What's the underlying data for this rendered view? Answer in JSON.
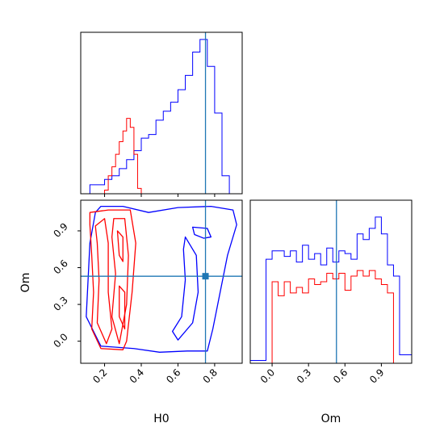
{
  "colors": {
    "series_a": "#0000ff",
    "series_b": "#ff0000",
    "truth": "#1f77b4"
  },
  "chart_data": {
    "type": "corner",
    "axes": [
      {
        "panel": "histogram",
        "parameter": "H0",
        "xlim": [
          0.07,
          0.95
        ],
        "x_tick_labels_shown": false,
        "truth": 0.75,
        "series": [
          {
            "color": "blue",
            "bin_edges": [
              0.08,
              0.12,
              0.16,
              0.2,
              0.24,
              0.28,
              0.32,
              0.36,
              0.4,
              0.44,
              0.48,
              0.52,
              0.56,
              0.6,
              0.64,
              0.68,
              0.72,
              0.76,
              0.8,
              0.84,
              0.88,
              0.92
            ],
            "heights": [
              0.0,
              0.05,
              0.05,
              0.08,
              0.1,
              0.14,
              0.19,
              0.24,
              0.31,
              0.33,
              0.41,
              0.46,
              0.51,
              0.58,
              0.66,
              0.79,
              0.86,
              0.71,
              0.45,
              0.1,
              0.0
            ]
          },
          {
            "color": "red",
            "bin_edges": [
              0.2,
              0.22,
              0.24,
              0.26,
              0.28,
              0.3,
              0.32,
              0.34,
              0.36,
              0.38,
              0.4
            ],
            "heights": [
              0.02,
              0.1,
              0.15,
              0.22,
              0.29,
              0.35,
              0.42,
              0.37,
              0.22,
              0.03
            ]
          }
        ]
      },
      {
        "panel": "contour",
        "xlabel": "H0",
        "ylabel": "Om",
        "xlim": [
          0.07,
          0.95
        ],
        "ylim": [
          -0.18,
          1.15
        ],
        "xticks": [
          "0.2",
          "0.4",
          "0.6",
          "0.8"
        ],
        "yticks": [
          "0.0",
          "0.3",
          "0.6",
          "0.9"
        ],
        "truth": [
          0.75,
          0.53
        ],
        "series": [
          {
            "color": "blue",
            "contours": [
              [
                [
                  0.18,
                  1.1
                ],
                [
                  0.3,
                  1.1
                ],
                [
                  0.44,
                  1.05
                ],
                [
                  0.6,
                  1.09
                ],
                [
                  0.78,
                  1.1
                ],
                [
                  0.9,
                  1.07
                ],
                [
                  0.92,
                  0.95
                ],
                [
                  0.87,
                  0.7
                ],
                [
                  0.83,
                  0.4
                ],
                [
                  0.79,
                  0.1
                ],
                [
                  0.76,
                  -0.08
                ],
                [
                  0.65,
                  -0.08
                ],
                [
                  0.5,
                  -0.09
                ],
                [
                  0.36,
                  -0.06
                ],
                [
                  0.18,
                  -0.04
                ],
                [
                  0.1,
                  0.2
                ],
                [
                  0.11,
                  0.5
                ],
                [
                  0.12,
                  0.8
                ],
                [
                  0.15,
                  1.05
                ]
              ],
              [
                [
                  0.64,
                  0.85
                ],
                [
                  0.7,
                  0.7
                ],
                [
                  0.71,
                  0.4
                ],
                [
                  0.68,
                  0.15
                ],
                [
                  0.6,
                  0.01
                ],
                [
                  0.57,
                  0.08
                ],
                [
                  0.62,
                  0.2
                ],
                [
                  0.64,
                  0.5
                ],
                [
                  0.63,
                  0.75
                ]
              ],
              [
                [
                  0.68,
                  0.93
                ],
                [
                  0.76,
                  0.92
                ],
                [
                  0.78,
                  0.85
                ],
                [
                  0.74,
                  0.84
                ],
                [
                  0.69,
                  0.87
                ]
              ]
            ]
          },
          {
            "color": "red",
            "contours": [
              [
                [
                  0.12,
                  1.05
                ],
                [
                  0.22,
                  1.07
                ],
                [
                  0.34,
                  1.07
                ],
                [
                  0.37,
                  0.8
                ],
                [
                  0.35,
                  0.4
                ],
                [
                  0.32,
                  0.0
                ],
                [
                  0.3,
                  -0.07
                ],
                [
                  0.18,
                  -0.06
                ],
                [
                  0.13,
                  0.1
                ],
                [
                  0.14,
                  0.4
                ],
                [
                  0.13,
                  0.7
                ],
                [
                  0.12,
                  0.95
                ]
              ],
              [
                [
                  0.15,
                  0.94
                ],
                [
                  0.2,
                  1.0
                ],
                [
                  0.22,
                  0.8
                ],
                [
                  0.22,
                  0.4
                ],
                [
                  0.24,
                  0.1
                ],
                [
                  0.21,
                  -0.02
                ],
                [
                  0.16,
                  0.15
                ],
                [
                  0.17,
                  0.5
                ],
                [
                  0.16,
                  0.8
                ]
              ],
              [
                [
                  0.25,
                  1.0
                ],
                [
                  0.31,
                  1.0
                ],
                [
                  0.33,
                  0.7
                ],
                [
                  0.32,
                  0.3
                ],
                [
                  0.28,
                  -0.02
                ],
                [
                  0.24,
                  0.2
                ],
                [
                  0.26,
                  0.55
                ],
                [
                  0.24,
                  0.85
                ]
              ],
              [
                [
                  0.27,
                  0.9
                ],
                [
                  0.3,
                  0.85
                ],
                [
                  0.3,
                  0.65
                ],
                [
                  0.28,
                  0.7
                ]
              ],
              [
                [
                  0.28,
                  0.45
                ],
                [
                  0.31,
                  0.4
                ],
                [
                  0.31,
                  0.1
                ],
                [
                  0.28,
                  0.2
                ]
              ]
            ]
          }
        ]
      },
      {
        "panel": "histogram",
        "parameter": "Om",
        "xlabel": "Om",
        "xlim": [
          -0.18,
          1.15
        ],
        "xticks": [
          "0.0",
          "0.3",
          "0.6",
          "0.9"
        ],
        "truth": 0.53,
        "series": [
          {
            "color": "blue",
            "bin_edges": [
              -0.18,
              -0.1,
              -0.05,
              0.0,
              0.05,
              0.1,
              0.15,
              0.2,
              0.25,
              0.3,
              0.35,
              0.4,
              0.45,
              0.5,
              0.55,
              0.6,
              0.65,
              0.7,
              0.75,
              0.8,
              0.85,
              0.9,
              0.95,
              1.0,
              1.05,
              1.1,
              1.15
            ],
            "heights": [
              0.01,
              0.01,
              0.37,
              0.4,
              0.4,
              0.38,
              0.4,
              0.36,
              0.42,
              0.37,
              0.39,
              0.35,
              0.41,
              0.36,
              0.4,
              0.39,
              0.37,
              0.46,
              0.44,
              0.48,
              0.52,
              0.46,
              0.35,
              0.31,
              0.03,
              0.03
            ]
          },
          {
            "color": "red",
            "bin_edges": [
              0.0,
              0.05,
              0.1,
              0.15,
              0.2,
              0.25,
              0.3,
              0.35,
              0.4,
              0.45,
              0.5,
              0.55,
              0.6,
              0.65,
              0.7,
              0.75,
              0.8,
              0.85,
              0.9,
              0.95,
              1.0
            ],
            "heights": [
              0.29,
              0.24,
              0.29,
              0.25,
              0.27,
              0.25,
              0.3,
              0.28,
              0.29,
              0.32,
              0.3,
              0.32,
              0.26,
              0.31,
              0.33,
              0.31,
              0.33,
              0.3,
              0.28,
              0.25
            ]
          }
        ]
      }
    ]
  }
}
